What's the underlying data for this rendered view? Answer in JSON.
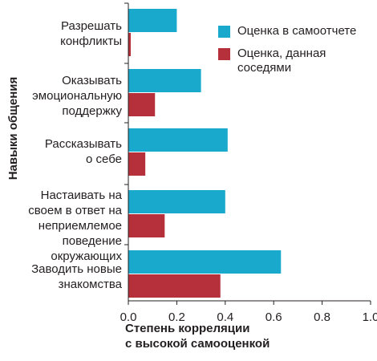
{
  "chart_data": {
    "type": "bar",
    "orientation": "horizontal",
    "categories": [
      [
        "Разрешать",
        "конфликты"
      ],
      [
        "Оказывать",
        "эмоциональную",
        "поддержку"
      ],
      [
        "Рассказывать",
        "о себе"
      ],
      [
        "Настаивать на",
        "своем в ответ на",
        "неприемлемое",
        "поведение",
        "окружающих"
      ],
      [
        "Заводить новые",
        "знакомства"
      ]
    ],
    "series": [
      {
        "name": "Оценка в самоотчете",
        "color": "#19a9cc",
        "values": [
          0.2,
          0.3,
          0.41,
          0.4,
          0.63
        ]
      },
      {
        "name": "Оценка, данная соседями",
        "color": "#b5303a",
        "values": [
          0.01,
          0.11,
          0.07,
          0.15,
          0.38
        ]
      }
    ],
    "xlabel": "Степень корреляции с высокой самооценкой",
    "xlabel_lines": [
      "Степень корреляции",
      "с высокой самооценкой"
    ],
    "ylabel": "Навыки общения",
    "xlim": [
      0,
      1.0
    ],
    "xticks": [
      "0.0",
      "0.2",
      "0.4",
      "0.6",
      "0.8",
      "1.0"
    ],
    "grid": false,
    "legend_position": "top-right",
    "legend_lines": [
      [
        "Оценка в самоотчете"
      ],
      [
        "Оценка, данная",
        "соседями"
      ]
    ]
  }
}
